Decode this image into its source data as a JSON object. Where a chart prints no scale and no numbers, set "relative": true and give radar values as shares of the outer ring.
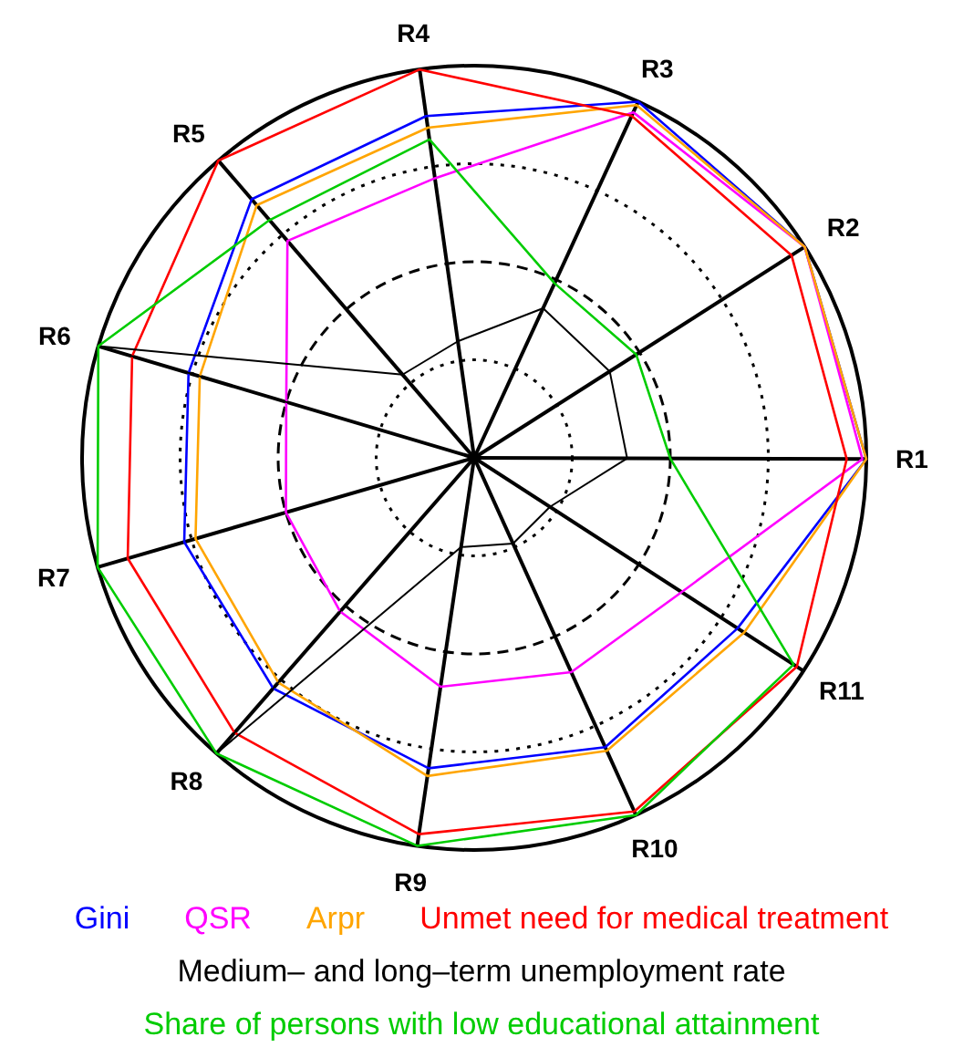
{
  "chart_data": {
    "type": "radar",
    "relative": true,
    "grid": true,
    "legend": "bottom",
    "categories": [
      "R4",
      "R3",
      "R2",
      "R1",
      "R11",
      "R10",
      "R9",
      "R8",
      "R7",
      "R6",
      "R5"
    ],
    "series": [
      {
        "name": "Gini",
        "color": "#0000ff",
        "values": [
          0.88,
          1.0,
          1.0,
          1.0,
          0.8,
          0.81,
          0.8,
          0.78,
          0.77,
          0.76,
          0.87
        ]
      },
      {
        "name": "QSR",
        "color": "#ff00ff",
        "values": [
          0.72,
          0.97,
          1.0,
          0.99,
          0.63,
          0.6,
          0.59,
          0.52,
          0.5,
          0.5,
          0.73
        ]
      },
      {
        "name": "Arpr",
        "color": "#ffa500",
        "values": [
          0.85,
          0.99,
          1.0,
          1.0,
          0.82,
          0.82,
          0.82,
          0.76,
          0.74,
          0.73,
          0.85
        ]
      },
      {
        "name": "Unmet need for medical treatment",
        "color": "#ff0000",
        "values": [
          1.0,
          0.96,
          0.96,
          0.95,
          0.98,
          0.99,
          0.97,
          0.93,
          0.92,
          0.91,
          1.0
        ]
      },
      {
        "name": "Medium– and long–term unemployment rate",
        "color": "#000000",
        "values": [
          0.3,
          0.42,
          0.41,
          0.39,
          0.23,
          0.24,
          0.23,
          1.0,
          0.0,
          1.0,
          0.28
        ]
      },
      {
        "name": "Share of persons with low educational attainment",
        "color": "#00cc00",
        "values": [
          0.82,
          0.49,
          0.49,
          0.5,
          0.97,
          1.0,
          1.0,
          1.0,
          1.0,
          1.0,
          0.8
        ]
      }
    ]
  }
}
